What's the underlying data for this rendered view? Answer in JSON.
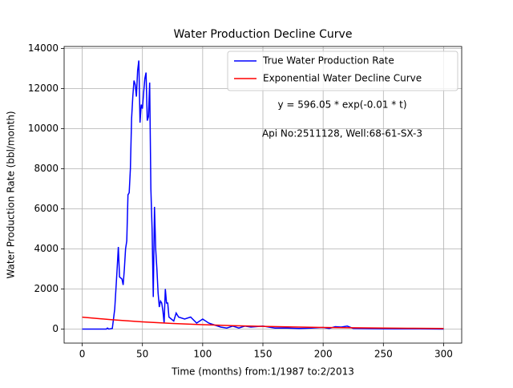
{
  "chart_data": {
    "type": "line",
    "title": "Water Production Decline Curve",
    "xlabel": "Time (months) from:1/1987 to:2/2013",
    "ylabel": "Water Production Rate (bbl/month)",
    "annotations": [
      "y = 596.05 * exp(-0.01 * t)",
      "Api No:2511128, Well:68-61-SX-3"
    ],
    "xlim": [
      -15,
      315
    ],
    "xticks": [
      0,
      50,
      100,
      150,
      200,
      250,
      300
    ],
    "ylim": [
      -700,
      14100
    ],
    "yticks": [
      0,
      2000,
      4000,
      6000,
      8000,
      10000,
      12000,
      14000
    ],
    "grid": true,
    "legend": "upper right",
    "series": [
      {
        "name": "True Water Production Rate",
        "color": "#0000ff",
        "x": [
          0,
          20,
          21,
          22,
          25,
          27,
          29,
          30,
          31,
          33,
          34,
          35,
          36,
          37,
          38,
          39,
          40,
          41,
          42,
          43,
          44,
          45,
          46,
          47,
          48,
          49,
          50,
          51,
          52,
          53,
          54,
          55,
          56,
          57,
          58,
          59,
          60,
          61,
          62,
          63,
          64,
          65,
          66,
          67,
          68,
          69,
          70,
          71,
          72,
          74,
          76,
          78,
          80,
          85,
          90,
          95,
          100,
          105,
          110,
          115,
          120,
          125,
          130,
          135,
          140,
          150,
          160,
          170,
          180,
          190,
          200,
          205,
          210,
          215,
          220,
          225,
          240,
          260,
          280,
          300
        ],
        "values": [
          0,
          0,
          50,
          0,
          30,
          1000,
          3000,
          4100,
          2600,
          2500,
          2200,
          3000,
          4000,
          4400,
          6700,
          6800,
          8000,
          10500,
          11600,
          12400,
          12200,
          11600,
          12900,
          13400,
          10300,
          11200,
          11000,
          11800,
          12500,
          12800,
          10400,
          10600,
          12300,
          7000,
          5000,
          1600,
          6100,
          4000,
          3000,
          1800,
          1100,
          1400,
          1300,
          900,
          300,
          2000,
          1300,
          1300,
          600,
          500,
          400,
          800,
          600,
          500,
          600,
          300,
          500,
          300,
          200,
          100,
          50,
          150,
          50,
          150,
          100,
          150,
          50,
          50,
          30,
          50,
          80,
          30,
          120,
          100,
          150,
          30,
          20,
          10,
          10,
          0
        ]
      },
      {
        "name": "Exponential Water Decline Curve",
        "color": "#ff0000",
        "x": [
          0,
          25,
          50,
          75,
          100,
          125,
          150,
          175,
          200,
          225,
          250,
          275,
          300
        ],
        "values": [
          596,
          464,
          361,
          282,
          219,
          171,
          133,
          103,
          81,
          63,
          49,
          38,
          30
        ]
      }
    ]
  }
}
